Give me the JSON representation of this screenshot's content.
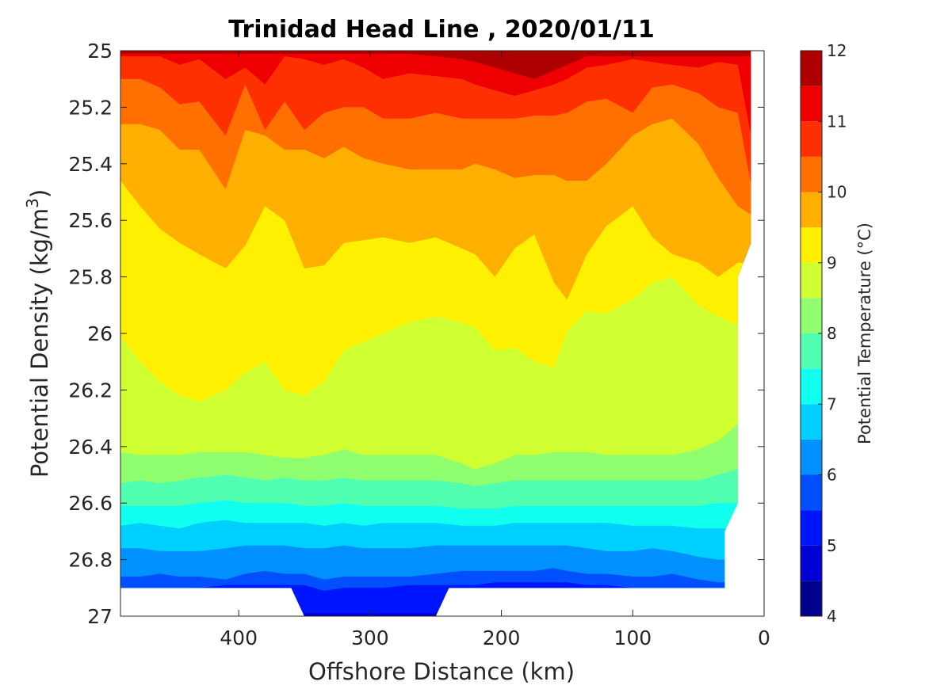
{
  "chart_data": {
    "type": "heatmap",
    "title": "Trinidad Head Line , 2020/01/11",
    "xlabel": "Offshore Distance (km)",
    "ylabel": "Potential Density (kg/m",
    "ylabel_sup": "3",
    "ylabel_tail": ")",
    "colorbar_label": "Potential Temperature (°C)",
    "xlim": [
      490,
      0
    ],
    "ylim": [
      25,
      27
    ],
    "x_reversed": true,
    "y_reversed": true,
    "x_ticks": [
      400,
      300,
      200,
      100,
      0
    ],
    "x_tick_labels": [
      "400",
      "300",
      "200",
      "100",
      "0"
    ],
    "y_ticks": [
      25,
      25.2,
      25.4,
      25.6,
      25.8,
      26,
      26.2,
      26.4,
      26.6,
      26.8,
      27
    ],
    "y_tick_labels": [
      "25",
      "25.2",
      "25.4",
      "25.6",
      "25.8",
      "26",
      "26.2",
      "26.4",
      "26.6",
      "26.8",
      "27"
    ],
    "colorbar_ticks": [
      4,
      5,
      6,
      7,
      8,
      9,
      10,
      11,
      12
    ],
    "colorbar_tick_labels": [
      "4",
      "5",
      "6",
      "7",
      "8",
      "9",
      "10",
      "11",
      "12"
    ],
    "levels": [
      4,
      4.5,
      5,
      5.5,
      6,
      6.5,
      7,
      7.5,
      8,
      8.5,
      9,
      9.5,
      10,
      10.5,
      11,
      11.5,
      12
    ],
    "colors": [
      "#00008f",
      "#0000d4",
      "#0015ff",
      "#0050ff",
      "#0090ff",
      "#00d0ff",
      "#10ffef",
      "#50ffaf",
      "#90ff6f",
      "#cfff30",
      "#ffef00",
      "#ffaf00",
      "#ff7000",
      "#ff3000",
      "#ef0000",
      "#af0000"
    ],
    "x_stations": [
      490,
      475,
      460,
      445,
      430,
      410,
      395,
      380,
      365,
      350,
      335,
      320,
      305,
      290,
      270,
      250,
      230,
      220,
      205,
      190,
      175,
      160,
      150,
      135,
      120,
      100,
      85,
      70,
      50,
      35,
      20,
      10
    ],
    "contours": [
      {
        "level": 11.5,
        "sigma": [
          null,
          null,
          null,
          null,
          null,
          null,
          null,
          null,
          null,
          null,
          null,
          null,
          null,
          null,
          25.01,
          25.02,
          25.03,
          25.04,
          25.06,
          25.08,
          25.1,
          25.07,
          25.05,
          25.02,
          null,
          null,
          null,
          null,
          null,
          null,
          null,
          null
        ]
      },
      {
        "level": 11.0,
        "sigma": [
          null,
          null,
          25.02,
          25.05,
          25.03,
          25.1,
          25.06,
          25.12,
          25.02,
          25.03,
          25.05,
          25.03,
          25.06,
          25.1,
          25.08,
          25.09,
          25.1,
          25.12,
          25.14,
          25.16,
          25.14,
          25.12,
          25.1,
          25.06,
          25.05,
          25.03,
          25.04,
          25.05,
          25.06,
          25.04,
          25.05,
          25.3
        ]
      },
      {
        "level": 10.5,
        "sigma": [
          25.1,
          25.1,
          25.13,
          25.19,
          25.18,
          25.3,
          25.12,
          25.28,
          25.18,
          25.28,
          25.22,
          25.2,
          25.2,
          25.24,
          25.24,
          25.22,
          25.24,
          25.24,
          25.24,
          25.24,
          25.23,
          25.23,
          25.22,
          25.18,
          25.17,
          25.22,
          25.13,
          25.12,
          25.15,
          25.2,
          25.22,
          25.47
        ]
      },
      {
        "level": 10.0,
        "sigma": [
          25.26,
          25.26,
          25.28,
          25.35,
          25.35,
          25.49,
          25.28,
          25.3,
          25.35,
          25.35,
          25.38,
          25.34,
          25.38,
          25.4,
          25.42,
          25.42,
          25.42,
          25.4,
          25.42,
          25.45,
          25.44,
          25.44,
          25.46,
          25.46,
          25.4,
          25.3,
          25.26,
          25.24,
          25.33,
          25.45,
          25.55,
          25.58
        ]
      },
      {
        "level": 9.5,
        "sigma": [
          25.46,
          25.55,
          25.63,
          25.68,
          25.72,
          25.77,
          25.69,
          25.55,
          25.6,
          25.77,
          25.76,
          25.68,
          25.67,
          25.66,
          25.68,
          25.66,
          25.7,
          25.72,
          25.8,
          25.7,
          25.65,
          25.82,
          25.88,
          25.72,
          25.62,
          25.55,
          25.66,
          25.72,
          25.75,
          25.8,
          25.75,
          null
        ]
      },
      {
        "level": 9.0,
        "sigma": [
          26.01,
          26.1,
          26.17,
          26.22,
          26.24,
          26.2,
          26.14,
          26.1,
          26.2,
          26.22,
          26.17,
          26.06,
          26.03,
          26.0,
          25.96,
          25.94,
          25.96,
          25.98,
          26.06,
          26.05,
          26.1,
          26.12,
          25.99,
          25.92,
          25.93,
          25.88,
          25.82,
          25.8,
          25.9,
          25.94,
          25.97,
          null
        ]
      },
      {
        "level": 8.5,
        "sigma": [
          26.42,
          26.43,
          26.43,
          26.43,
          26.42,
          26.42,
          26.42,
          26.43,
          26.44,
          26.44,
          26.43,
          26.41,
          26.43,
          26.43,
          26.43,
          26.43,
          26.46,
          26.48,
          26.46,
          26.43,
          26.43,
          26.42,
          26.42,
          26.42,
          26.43,
          26.43,
          26.43,
          26.43,
          26.41,
          26.38,
          26.32,
          null
        ]
      },
      {
        "level": 8.0,
        "sigma": [
          26.53,
          26.52,
          26.53,
          26.52,
          26.51,
          26.5,
          26.51,
          26.52,
          26.51,
          26.52,
          26.52,
          26.51,
          26.52,
          26.52,
          26.52,
          26.52,
          26.53,
          26.54,
          26.53,
          26.52,
          26.52,
          26.52,
          26.52,
          26.52,
          26.52,
          26.52,
          26.52,
          26.52,
          26.52,
          26.5,
          26.48,
          null
        ]
      },
      {
        "level": 7.5,
        "sigma": [
          26.61,
          26.61,
          26.61,
          26.61,
          26.6,
          26.59,
          26.6,
          26.6,
          26.6,
          26.61,
          26.61,
          26.6,
          26.61,
          26.61,
          26.61,
          26.61,
          26.62,
          26.62,
          26.62,
          26.61,
          26.61,
          26.61,
          26.61,
          26.61,
          26.61,
          26.61,
          26.61,
          26.61,
          26.61,
          26.6,
          26.6,
          null
        ]
      },
      {
        "level": 7.0,
        "sigma": [
          26.68,
          26.67,
          26.68,
          26.69,
          26.67,
          26.66,
          26.67,
          26.67,
          26.67,
          26.67,
          26.68,
          26.67,
          26.68,
          26.67,
          26.67,
          26.67,
          26.68,
          26.68,
          26.68,
          26.67,
          26.67,
          26.67,
          26.67,
          26.67,
          26.67,
          26.68,
          26.68,
          26.68,
          26.69,
          26.69,
          null,
          null
        ]
      },
      {
        "level": 6.5,
        "sigma": [
          26.76,
          26.76,
          26.77,
          26.77,
          26.77,
          26.76,
          26.75,
          26.75,
          26.75,
          26.76,
          26.76,
          26.75,
          26.76,
          26.76,
          26.76,
          26.75,
          26.75,
          26.75,
          26.75,
          26.75,
          26.75,
          26.75,
          26.75,
          26.76,
          26.77,
          26.77,
          26.76,
          26.77,
          26.79,
          26.8,
          null,
          null
        ]
      },
      {
        "level": 6.0,
        "sigma": [
          26.86,
          26.86,
          26.85,
          26.86,
          26.86,
          26.87,
          26.85,
          26.84,
          26.85,
          26.85,
          26.87,
          26.86,
          26.86,
          26.86,
          26.86,
          26.85,
          26.84,
          26.84,
          26.84,
          26.84,
          26.84,
          26.83,
          26.84,
          26.85,
          26.85,
          26.86,
          26.86,
          26.85,
          26.87,
          26.88,
          null,
          null
        ]
      },
      {
        "level": 5.5,
        "sigma": [
          26.9,
          26.9,
          26.9,
          26.9,
          26.9,
          26.89,
          26.89,
          26.89,
          26.89,
          26.89,
          26.91,
          26.9,
          26.9,
          26.9,
          26.89,
          26.89,
          26.89,
          26.89,
          26.88,
          26.88,
          26.88,
          26.88,
          26.88,
          26.89,
          26.89,
          26.9,
          26.9,
          26.9,
          26.9,
          26.9,
          null,
          null
        ]
      },
      {
        "level": 5.0,
        "sigma": [
          null,
          null,
          null,
          null,
          null,
          null,
          null,
          null,
          null,
          26.99,
          26.99,
          26.99,
          26.99,
          26.99,
          26.99,
          26.99,
          null,
          null,
          null,
          null,
          null,
          null,
          null,
          null,
          null,
          null,
          null,
          null,
          null,
          null,
          null,
          null
        ]
      }
    ],
    "data_boundary": {
      "right_edge": [
        [
          10,
          25.0
        ],
        [
          10,
          25.68
        ],
        [
          20,
          25.8
        ],
        [
          20,
          26.6
        ],
        [
          30,
          26.7
        ],
        [
          30,
          26.9
        ]
      ],
      "bottom_edge": [
        [
          30,
          26.9
        ],
        [
          240,
          26.9
        ],
        [
          250,
          27.0
        ],
        [
          350,
          27.0
        ],
        [
          360,
          26.9
        ],
        [
          490,
          26.9
        ]
      ]
    }
  }
}
